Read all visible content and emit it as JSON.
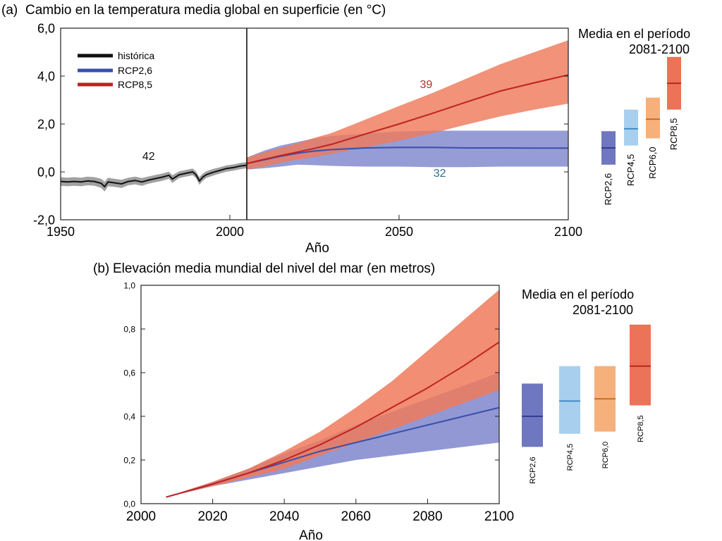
{
  "chart_data": [
    {
      "panel": "(a)",
      "type": "line",
      "title": "Cambio en la temperatura media global en superficie (en °C)",
      "xlabel": "Año",
      "ylabel": "",
      "xlim": [
        1950,
        2100
      ],
      "ylim": [
        -2,
        6
      ],
      "xticks": [
        {
          "value": 1950,
          "label": "1950"
        },
        {
          "value": 2000,
          "label": "2000"
        },
        {
          "value": 2050,
          "label": "2050"
        },
        {
          "value": 2100,
          "label": "2100"
        }
      ],
      "yticks": [
        {
          "value": -2,
          "label": "-2,0"
        },
        {
          "value": 0,
          "label": "0,0"
        },
        {
          "value": 2,
          "label": "2,0"
        },
        {
          "value": 4,
          "label": "4,0"
        },
        {
          "value": 6,
          "label": "6,0"
        }
      ],
      "vline_x": 2005,
      "legend": {
        "position": "top-left",
        "entries": [
          {
            "label": "histórica",
            "color": "#111111"
          },
          {
            "label": "RCP2,6",
            "color": "#3a4fa8"
          },
          {
            "label": "RCP8,5",
            "color": "#c0221f"
          }
        ]
      },
      "series": [
        {
          "name": "histórica",
          "color": "#111111",
          "band_color": "#8c8c8c",
          "x": [
            1950,
            1952,
            1954,
            1956,
            1958,
            1960,
            1962,
            1963,
            1964,
            1966,
            1968,
            1970,
            1972,
            1974,
            1976,
            1978,
            1980,
            1982,
            1983,
            1985,
            1987,
            1989,
            1990,
            1991,
            1992,
            1993,
            1995,
            1997,
            1999,
            2001,
            2003,
            2005
          ],
          "y": [
            -0.4,
            -0.42,
            -0.4,
            -0.42,
            -0.38,
            -0.4,
            -0.48,
            -0.62,
            -0.42,
            -0.46,
            -0.5,
            -0.4,
            -0.36,
            -0.42,
            -0.34,
            -0.28,
            -0.22,
            -0.14,
            -0.3,
            -0.12,
            -0.06,
            0.0,
            -0.12,
            -0.38,
            -0.22,
            -0.12,
            -0.02,
            0.06,
            0.14,
            0.18,
            0.24,
            0.28
          ],
          "band_halfwidth": [
            0.18,
            0.18,
            0.18,
            0.18,
            0.18,
            0.18,
            0.19,
            0.2,
            0.18,
            0.17,
            0.17,
            0.16,
            0.16,
            0.16,
            0.15,
            0.15,
            0.15,
            0.15,
            0.16,
            0.14,
            0.14,
            0.14,
            0.14,
            0.16,
            0.15,
            0.14,
            0.14,
            0.13,
            0.13,
            0.13,
            0.13,
            0.13
          ],
          "annotation": {
            "text": "42",
            "x": 1976,
            "y": 0.5
          }
        },
        {
          "name": "RCP2,6",
          "color": "#3a4fa8",
          "band_color": "#7f86cc",
          "x": [
            2005,
            2010,
            2015,
            2020,
            2025,
            2030,
            2040,
            2050,
            2060,
            2070,
            2080,
            2090,
            2100
          ],
          "y": [
            0.35,
            0.5,
            0.65,
            0.78,
            0.87,
            0.93,
            1.0,
            1.02,
            1.02,
            1.0,
            1.0,
            0.99,
            0.99
          ],
          "lower": [
            0.1,
            0.15,
            0.22,
            0.3,
            0.28,
            0.25,
            0.22,
            0.22,
            0.2,
            0.2,
            0.22,
            0.22,
            0.22
          ],
          "upper": [
            0.6,
            0.88,
            1.1,
            1.25,
            1.4,
            1.5,
            1.6,
            1.68,
            1.72,
            1.72,
            1.72,
            1.72,
            1.72
          ],
          "annotation": {
            "text": "32",
            "x": 2062,
            "y": -0.2
          }
        },
        {
          "name": "RCP8,5",
          "color": "#c0221f",
          "band_color": "#ee7a5c",
          "x": [
            2005,
            2010,
            2015,
            2020,
            2025,
            2030,
            2040,
            2050,
            2060,
            2070,
            2080,
            2090,
            2100
          ],
          "y": [
            0.35,
            0.52,
            0.68,
            0.83,
            0.98,
            1.15,
            1.58,
            2.0,
            2.45,
            2.92,
            3.38,
            3.72,
            4.05
          ],
          "lower": [
            0.1,
            0.22,
            0.38,
            0.52,
            0.62,
            0.75,
            1.02,
            1.3,
            1.62,
            1.98,
            2.32,
            2.6,
            2.85
          ],
          "upper": [
            0.6,
            0.82,
            1.0,
            1.2,
            1.42,
            1.62,
            2.18,
            2.75,
            3.3,
            3.9,
            4.5,
            5.0,
            5.5
          ],
          "annotation": {
            "text": "39",
            "x": 2058,
            "y": 3.5
          }
        }
      ],
      "side_panel": {
        "title_line1": "Media en el período",
        "title_line2": "2081-2100",
        "bars": [
          {
            "label": "RCP2,6",
            "low": 0.3,
            "mean": 1.0,
            "high": 1.7,
            "fill": "#6f77c0",
            "line": "#28358e"
          },
          {
            "label": "RCP4,5",
            "low": 1.1,
            "mean": 1.8,
            "high": 2.6,
            "fill": "#a8d0ee",
            "line": "#3e86c4"
          },
          {
            "label": "RCP6,0",
            "low": 1.4,
            "mean": 2.2,
            "high": 3.1,
            "fill": "#f6b07c",
            "line": "#c26a22"
          },
          {
            "label": "RCP8,5",
            "low": 2.6,
            "mean": 3.7,
            "high": 4.8,
            "fill": "#ec7357",
            "line": "#b4231c"
          }
        ]
      }
    },
    {
      "panel": "(b)",
      "type": "line",
      "title": "Elevación media mundial del nivel del mar (en metros)",
      "xlabel": "Año",
      "ylabel": "",
      "xlim": [
        2000,
        2100
      ],
      "ylim": [
        0,
        1
      ],
      "xticks": [
        {
          "value": 2000,
          "label": "2000"
        },
        {
          "value": 2020,
          "label": "2020"
        },
        {
          "value": 2040,
          "label": "2040"
        },
        {
          "value": 2060,
          "label": "2060"
        },
        {
          "value": 2080,
          "label": "2080"
        },
        {
          "value": 2100,
          "label": "2100"
        }
      ],
      "yticks": [
        {
          "value": 0,
          "label": "0,0"
        },
        {
          "value": 0.2,
          "label": "0,2"
        },
        {
          "value": 0.4,
          "label": "0,4"
        },
        {
          "value": 0.6,
          "label": "0,6"
        },
        {
          "value": 0.8,
          "label": "0,8"
        },
        {
          "value": 1,
          "label": "1,0"
        }
      ],
      "series": [
        {
          "name": "RCP2,6",
          "color": "#3a4fa8",
          "band_color": "#7f86cc",
          "x": [
            2007,
            2020,
            2030,
            2040,
            2050,
            2060,
            2070,
            2080,
            2090,
            2100
          ],
          "y": [
            0.03,
            0.09,
            0.14,
            0.19,
            0.24,
            0.28,
            0.32,
            0.36,
            0.4,
            0.44
          ],
          "lower": [
            0.03,
            0.08,
            0.11,
            0.14,
            0.17,
            0.2,
            0.22,
            0.24,
            0.26,
            0.28
          ],
          "upper": [
            0.03,
            0.1,
            0.16,
            0.23,
            0.29,
            0.36,
            0.42,
            0.48,
            0.54,
            0.6
          ]
        },
        {
          "name": "RCP8,5",
          "color": "#c0221f",
          "band_color": "#ee7a5c",
          "x": [
            2007,
            2020,
            2030,
            2040,
            2050,
            2060,
            2070,
            2080,
            2090,
            2100
          ],
          "y": [
            0.03,
            0.09,
            0.14,
            0.2,
            0.27,
            0.35,
            0.44,
            0.53,
            0.63,
            0.74
          ],
          "lower": [
            0.03,
            0.08,
            0.12,
            0.16,
            0.22,
            0.28,
            0.34,
            0.4,
            0.46,
            0.52
          ],
          "upper": [
            0.03,
            0.1,
            0.16,
            0.24,
            0.33,
            0.44,
            0.56,
            0.7,
            0.84,
            0.98
          ]
        }
      ],
      "side_panel": {
        "title_line1": "Media en el período",
        "title_line2": "2081-2100",
        "bars": [
          {
            "label": "RCP2,6",
            "low": 0.26,
            "mean": 0.4,
            "high": 0.55,
            "fill": "#6f77c0",
            "line": "#28358e"
          },
          {
            "label": "RCP4,5",
            "low": 0.32,
            "mean": 0.47,
            "high": 0.63,
            "fill": "#a8d0ee",
            "line": "#3e86c4"
          },
          {
            "label": "RCP6,0",
            "low": 0.33,
            "mean": 0.48,
            "high": 0.63,
            "fill": "#f6b07c",
            "line": "#c26a22"
          },
          {
            "label": "RCP8,5",
            "low": 0.45,
            "mean": 0.63,
            "high": 0.82,
            "fill": "#ec7357",
            "line": "#b4231c"
          }
        ]
      }
    }
  ]
}
